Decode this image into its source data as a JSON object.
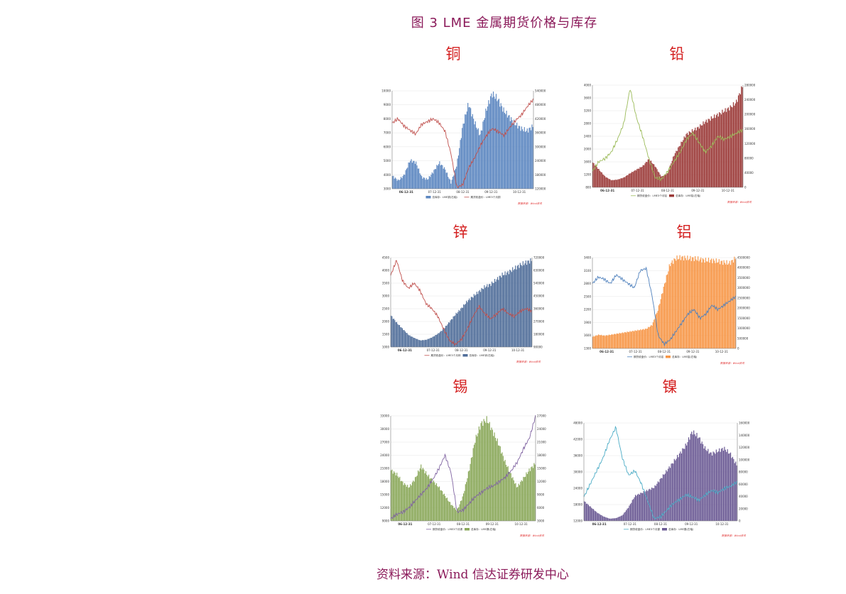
{
  "figure_title": "图 3   LME 金属期货价格与库存",
  "source_note": "资料来源：Wind  信达证券研发中心",
  "chart_data": [
    {
      "name": "铜",
      "type": "area",
      "x_ticks": [
        "06-12-31",
        "07-12-31",
        "08-12-31",
        "09-12-31",
        "10-12-31"
      ],
      "y_left_ticks": [
        "3000",
        "4000",
        "5000",
        "6000",
        "7000",
        "8000",
        "9000",
        "10000"
      ],
      "y_right_ticks": [
        "120000",
        "180000",
        "240000",
        "300000",
        "360000",
        "420000",
        "480000",
        "540000"
      ],
      "legend": [
        "总库存：LME铜(右轴)",
        "期货收盘价：LME3个月铜"
      ],
      "watermark": "数据来源：Wind资讯",
      "area_color": "#5b86c0",
      "line_color": "#c0504d",
      "area_first": true,
      "line_range": [
        3000,
        10000
      ],
      "area_range": [
        120000,
        540000
      ],
      "line_series": [
        7700,
        8000,
        7500,
        7200,
        6900,
        7600,
        7800,
        8000,
        7700,
        7100,
        5500,
        3100,
        3300,
        4500,
        5200,
        6100,
        6800,
        7300,
        7100,
        6800,
        7400,
        7900,
        8300,
        8900,
        9400
      ],
      "area_series": [
        180000,
        160000,
        185000,
        250000,
        240000,
        175000,
        165000,
        200000,
        240000,
        210000,
        150000,
        230000,
        400000,
        500000,
        420000,
        360000,
        470000,
        545000,
        520000,
        470000,
        440000,
        410000,
        390000,
        380000,
        400000
      ]
    },
    {
      "name": "铅",
      "type": "area",
      "x_ticks": [
        "06-12-31",
        "07-12-31",
        "08-12-31",
        "09-12-31",
        "10-12-31"
      ],
      "y_left_ticks": [
        "800",
        "1200",
        "1600",
        "2000",
        "2400",
        "2800",
        "3200",
        "3600",
        "4000"
      ],
      "y_right_ticks": [
        "0",
        "40000",
        "80000",
        "120000",
        "160000",
        "200000",
        "240000",
        "280000"
      ],
      "legend": [
        "期货收盘价：LME3个月铅",
        "总库存：LME铅(右轴)"
      ],
      "watermark": "数据来源：Wind资讯",
      "area_color": "#9b3a38",
      "line_color": "#9bbb59",
      "area_first": false,
      "line_range": [
        800,
        4000
      ],
      "area_range": [
        0,
        280000
      ],
      "line_series": [
        1300,
        1600,
        1700,
        1900,
        2300,
        2800,
        3900,
        3000,
        2400,
        1700,
        1100,
        1050,
        1300,
        1600,
        1900,
        2300,
        2500,
        2200,
        1900,
        2100,
        2400,
        2300,
        2400,
        2500,
        2600
      ],
      "area_series": [
        70000,
        50000,
        30000,
        20000,
        22000,
        28000,
        40000,
        50000,
        60000,
        80000,
        60000,
        30000,
        40000,
        90000,
        120000,
        150000,
        160000,
        170000,
        185000,
        195000,
        205000,
        215000,
        225000,
        240000,
        285000
      ]
    },
    {
      "name": "锌",
      "type": "area",
      "x_ticks": [
        "06-12-31",
        "07-12-31",
        "08-12-31",
        "09-12-31",
        "10-12-31"
      ],
      "y_left_ticks": [
        "1000",
        "1500",
        "2000",
        "2500",
        "3000",
        "3500",
        "4000",
        "4500"
      ],
      "y_right_ticks": [
        "90000",
        "180000",
        "270000",
        "360000",
        "450000",
        "540000",
        "630000",
        "720000"
      ],
      "legend": [
        "期货收盘价：LME3个月锌",
        "总库存：LME锌(右轴)"
      ],
      "watermark": "数据来源：Wind资讯",
      "area_color": "#4f6d99",
      "line_color": "#c0504d",
      "area_first": false,
      "line_range": [
        1000,
        4500
      ],
      "area_range": [
        0,
        720000
      ],
      "line_series": [
        3800,
        4400,
        3600,
        3300,
        3500,
        3200,
        2700,
        2500,
        2200,
        1700,
        1250,
        1100,
        1300,
        1700,
        2200,
        2600,
        2300,
        2100,
        2300,
        2500,
        2300,
        2200,
        2400,
        2500,
        2400
      ],
      "area_series": [
        260000,
        200000,
        150000,
        100000,
        75000,
        55000,
        60000,
        80000,
        110000,
        150000,
        210000,
        270000,
        320000,
        380000,
        420000,
        460000,
        500000,
        520000,
        560000,
        600000,
        620000,
        650000,
        680000,
        700000,
        720000
      ]
    },
    {
      "name": "铝",
      "type": "area",
      "x_ticks": [
        "06-12-31",
        "07-12-31",
        "08-12-31",
        "09-12-31",
        "10-12-31"
      ],
      "y_left_ticks": [
        "1300",
        "1600",
        "1900",
        "2200",
        "2500",
        "2800",
        "3100",
        "3400"
      ],
      "y_right_ticks": [
        "0",
        "500000",
        "1000000",
        "1500000",
        "2000000",
        "2500000",
        "3000000",
        "3500000",
        "4000000",
        "4500000"
      ],
      "legend": [
        "期货收盘价：LME3个月铝",
        "总库存：LME铝(右轴)"
      ],
      "watermark": "数据来源：Wind资讯",
      "area_color": "#f79646",
      "line_color": "#4f81bd",
      "area_first": false,
      "line_range": [
        1300,
        3400
      ],
      "area_range": [
        0,
        4500000
      ],
      "line_series": [
        2800,
        2950,
        2900,
        2800,
        3000,
        2900,
        2800,
        2700,
        3100,
        3150,
        2500,
        1600,
        1400,
        1500,
        1700,
        1900,
        2100,
        2200,
        2000,
        2100,
        2300,
        2200,
        2300,
        2400,
        2500
      ],
      "area_series": [
        600000,
        700000,
        650000,
        700000,
        750000,
        800000,
        850000,
        900000,
        950000,
        1000000,
        1200000,
        2000000,
        3200000,
        4300000,
        4600000,
        4650000,
        4600000,
        4600000,
        4550000,
        4500000,
        4500000,
        4450000,
        4400000,
        4350000,
        4600000
      ]
    },
    {
      "name": "锡",
      "type": "area",
      "x_ticks": [
        "06-12-31",
        "07-12-31",
        "08-12-31",
        "09-12-31",
        "10-12-31"
      ],
      "y_left_ticks": [
        "9000",
        "12000",
        "15000",
        "18000",
        "21000",
        "24000",
        "27000",
        "30000",
        "33000"
      ],
      "y_right_ticks": [
        "3000",
        "6000",
        "9000",
        "12000",
        "15000",
        "18000",
        "21000",
        "24000",
        "27000"
      ],
      "legend": [
        "期货收盘价：LME3个月锡",
        "总库存：LME锡(右轴)"
      ],
      "watermark": "数据来源：Wind资讯",
      "area_color": "#8aa85a",
      "line_color": "#8064a2",
      "area_first": false,
      "line_range": [
        9000,
        33000
      ],
      "area_range": [
        3000,
        27000
      ],
      "line_series": [
        9500,
        10500,
        11000,
        12000,
        13500,
        15000,
        16500,
        18500,
        21000,
        24000,
        20000,
        11000,
        11500,
        13000,
        14500,
        15500,
        16500,
        17000,
        18000,
        19000,
        20500,
        22500,
        25500,
        28000,
        33000
      ],
      "area_series": [
        15000,
        14000,
        12000,
        11000,
        13000,
        16000,
        14000,
        12500,
        11000,
        9000,
        7000,
        5500,
        9000,
        15000,
        22000,
        26000,
        27000,
        24000,
        21000,
        17000,
        14000,
        11000,
        13000,
        15000,
        16500
      ]
    },
    {
      "name": "镍",
      "type": "area",
      "x_ticks": [
        "06-12-31",
        "07-12-31",
        "08-12-31",
        "09-12-31",
        "10-12-31"
      ],
      "y_left_ticks": [
        "12000",
        "18000",
        "24000",
        "30000",
        "36000",
        "42000",
        "48000"
      ],
      "y_right_ticks": [
        "0",
        "20000",
        "40000",
        "60000",
        "80000",
        "100000",
        "120000",
        "140000",
        "160000"
      ],
      "legend": [
        "期货收盘价：LME3个月镍",
        "总库存：LME镍(右轴)"
      ],
      "watermark": "数据来源：Wind资讯",
      "area_color": "#6b5a94",
      "line_color": "#4bacc6",
      "area_first": false,
      "line_range": [
        9000,
        54000
      ],
      "area_range": [
        0,
        170000
      ],
      "line_series": [
        20000,
        26000,
        32000,
        38000,
        46000,
        52000,
        38000,
        30000,
        32000,
        26000,
        18000,
        10000,
        11000,
        14000,
        17000,
        19000,
        21000,
        20000,
        18500,
        21000,
        23000,
        22000,
        24000,
        25000,
        27000
      ],
      "area_series": [
        35000,
        25000,
        15000,
        8000,
        4000,
        5000,
        10000,
        25000,
        45000,
        50000,
        55000,
        60000,
        75000,
        90000,
        105000,
        120000,
        135000,
        160000,
        150000,
        130000,
        120000,
        125000,
        130000,
        120000,
        100000
      ]
    }
  ]
}
